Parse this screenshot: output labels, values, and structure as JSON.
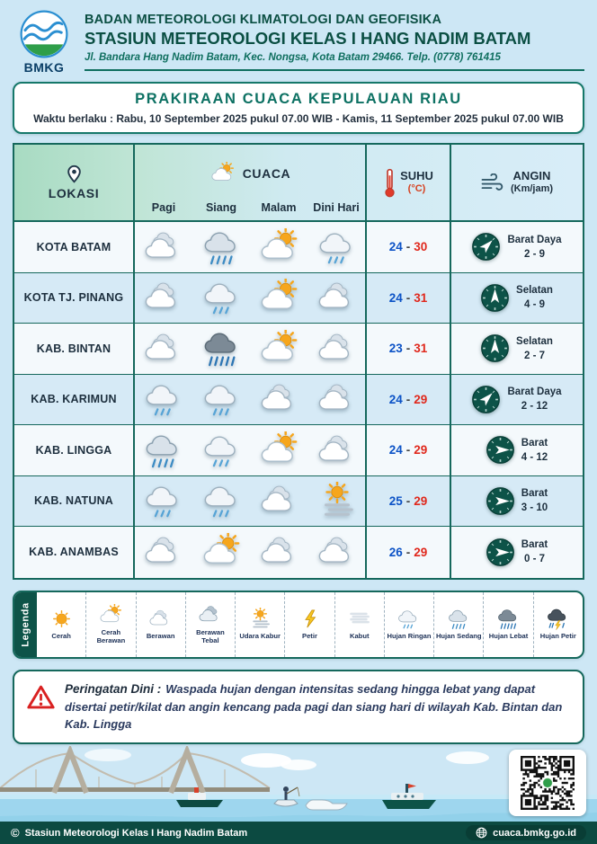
{
  "header": {
    "logo_text": "BMKG",
    "org_line1": "BADAN METEOROLOGI KLIMATOLOGI DAN GEOFISIKA",
    "org_line2": "STASIUN METEOROLOGI KELAS I HANG NADIM BATAM",
    "address": "Jl. Bandara Hang Nadim Batam, Kec. Nongsa, Kota Batam 29466.  Telp. (0778) 761415"
  },
  "title_box": {
    "title": "PRAKIRAAN CUACA KEPULAUAN RIAU",
    "validity": "Waktu berlaku : Rabu, 10 September 2025 pukul 07.00 WIB - Kamis, 11 September 2025 pukul 07.00 WIB"
  },
  "table": {
    "columns": {
      "lokasi": "LOKASI",
      "lokasi_icon": "location-pin",
      "cuaca": "CUACA",
      "cuaca_icon": "sun-cloud-icon",
      "suhu": "SUHU",
      "suhu_unit": "(°C)",
      "suhu_icon": "thermometer-icon",
      "angin": "ANGIN",
      "angin_unit": "(Km/jam)",
      "angin_icon": "wind-icon",
      "times": [
        "Pagi",
        "Siang",
        "Malam",
        "Dini Hari"
      ]
    },
    "temp_separator": "-",
    "rows": [
      {
        "location": "KOTA BATAM",
        "icons": [
          "berawan",
          "hujan-sedang",
          "cerah-berawan",
          "hujan-ringan"
        ],
        "temp_min": "24",
        "temp_max": "30",
        "wind_dir": "Barat Daya",
        "wind_speed": "2 - 9",
        "arrow_deg": 45
      },
      {
        "location": "KOTA TJ. PINANG",
        "icons": [
          "berawan",
          "hujan-ringan",
          "cerah-berawan",
          "berawan"
        ],
        "temp_min": "24",
        "temp_max": "31",
        "wind_dir": "Selatan",
        "wind_speed": "4 - 9",
        "arrow_deg": 0
      },
      {
        "location": "KAB. BINTAN",
        "icons": [
          "berawan",
          "hujan-lebat",
          "cerah-berawan",
          "berawan"
        ],
        "temp_min": "23",
        "temp_max": "31",
        "wind_dir": "Selatan",
        "wind_speed": "2 - 7",
        "arrow_deg": 0
      },
      {
        "location": "KAB. KARIMUN",
        "icons": [
          "hujan-ringan",
          "hujan-ringan",
          "berawan",
          "berawan"
        ],
        "temp_min": "24",
        "temp_max": "29",
        "wind_dir": "Barat Daya",
        "wind_speed": "2 - 12",
        "arrow_deg": 45
      },
      {
        "location": "KAB. LINGGA",
        "icons": [
          "hujan-sedang",
          "hujan-ringan",
          "cerah-berawan",
          "berawan"
        ],
        "temp_min": "24",
        "temp_max": "29",
        "wind_dir": "Barat",
        "wind_speed": "4 - 12",
        "arrow_deg": 90
      },
      {
        "location": "KAB. NATUNA",
        "icons": [
          "hujan-ringan",
          "hujan-ringan",
          "berawan",
          "udara-kabur"
        ],
        "temp_min": "25",
        "temp_max": "29",
        "wind_dir": "Barat",
        "wind_speed": "3 - 10",
        "arrow_deg": 90
      },
      {
        "location": "KAB. ANAMBAS",
        "icons": [
          "berawan",
          "cerah-berawan",
          "berawan",
          "berawan"
        ],
        "temp_min": "26",
        "temp_max": "29",
        "wind_dir": "Barat",
        "wind_speed": "0 - 7",
        "arrow_deg": 90
      }
    ]
  },
  "legend": {
    "label": "Legenda",
    "items": [
      {
        "icon": "cerah",
        "label": "Cerah"
      },
      {
        "icon": "cerah-berawan",
        "label": "Cerah Berawan"
      },
      {
        "icon": "berawan",
        "label": "Berawan"
      },
      {
        "icon": "berawan-tebal",
        "label": "Berawan Tebal"
      },
      {
        "icon": "udara-kabur",
        "label": "Udara Kabur"
      },
      {
        "icon": "petir",
        "label": "Petir"
      },
      {
        "icon": "kabut",
        "label": "Kabut"
      },
      {
        "icon": "hujan-ringan",
        "label": "Hujan Ringan"
      },
      {
        "icon": "hujan-sedang",
        "label": "Hujan Sedang"
      },
      {
        "icon": "hujan-lebat",
        "label": "Hujan Lebat"
      },
      {
        "icon": "hujan-petir",
        "label": "Hujan Petir"
      }
    ]
  },
  "warning": {
    "icon": "warning-triangle-icon",
    "label": "Peringatan Dini :",
    "text": "Waspada hujan dengan intensitas sedang hingga lebat yang dapat disertai petir/kilat dan angin kencang pada pagi dan siang hari di wilayah Kab. Bintan dan Kab. Lingga"
  },
  "footer": {
    "copyright_symbol": "©",
    "station": "Stasiun Meteorologi Kelas I Hang Nadim Batam",
    "website_icon": "globe-icon",
    "website": "cuaca.bmkg.go.id"
  },
  "colors": {
    "accent_teal": "#15685c",
    "dark_teal_fill": "#0d5348",
    "temp_min_blue": "#0b52c6",
    "temp_max_red": "#e0281c",
    "page_background": "#cde7f5"
  }
}
